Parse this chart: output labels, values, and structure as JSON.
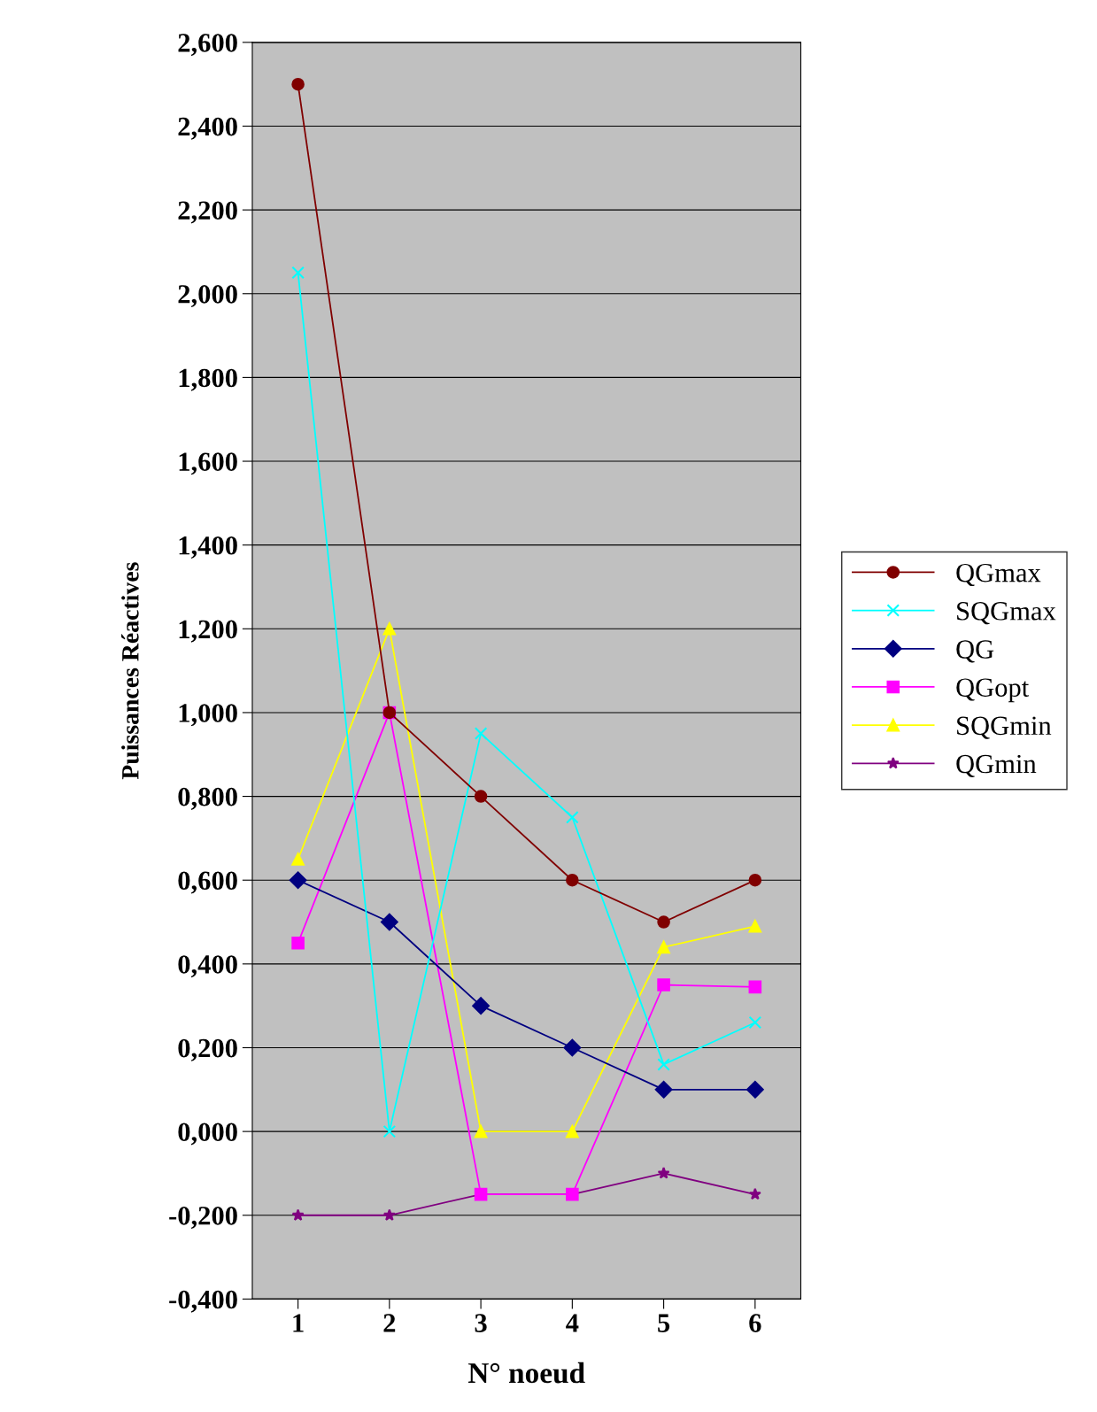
{
  "chart_data": {
    "type": "line",
    "xlabel": "N° noeud",
    "ylabel": "Puissances Réactives",
    "categories": [
      "1",
      "2",
      "3",
      "4",
      "5",
      "6"
    ],
    "series": [
      {
        "name": "QGmax",
        "color": "#800000",
        "marker": "circle",
        "values": [
          2.5,
          1.0,
          0.8,
          0.6,
          0.5,
          0.6
        ]
      },
      {
        "name": "SQGmax",
        "color": "#00ffff",
        "marker": "cross",
        "values": [
          2.05,
          0.0,
          0.95,
          0.75,
          0.16,
          0.26
        ]
      },
      {
        "name": "QG",
        "color": "#000080",
        "marker": "diamond",
        "values": [
          0.6,
          0.5,
          0.3,
          0.2,
          0.1,
          0.1
        ]
      },
      {
        "name": "QGopt",
        "color": "#ff00ff",
        "marker": "square",
        "values": [
          0.45,
          1.0,
          -0.15,
          -0.15,
          0.35,
          0.345
        ]
      },
      {
        "name": "SQGmin",
        "color": "#ffff00",
        "marker": "triangle",
        "values": [
          0.65,
          1.2,
          0.0,
          0.0,
          0.44,
          0.49
        ]
      },
      {
        "name": "QGmin",
        "color": "#800080",
        "marker": "star",
        "values": [
          -0.2,
          -0.2,
          -0.15,
          -0.15,
          -0.1,
          -0.15
        ]
      }
    ],
    "ylim": [
      -0.4,
      2.6
    ],
    "yticks": [
      {
        "value": -0.4,
        "label": "-0,400"
      },
      {
        "value": -0.2,
        "label": "-0,200"
      },
      {
        "value": 0,
        "label": "0,000"
      },
      {
        "value": 0.2,
        "label": "0,200"
      },
      {
        "value": 0.4,
        "label": "0,400"
      },
      {
        "value": 0.6,
        "label": "0,600"
      },
      {
        "value": 0.8,
        "label": "0,800"
      },
      {
        "value": 1.0,
        "label": "1,000"
      },
      {
        "value": 1.2,
        "label": "1,200"
      },
      {
        "value": 1.4,
        "label": "1,400"
      },
      {
        "value": 1.6,
        "label": "1,600"
      },
      {
        "value": 1.8,
        "label": "1,800"
      },
      {
        "value": 2.0,
        "label": "2,000"
      },
      {
        "value": 2.2,
        "label": "2,200"
      },
      {
        "value": 2.4,
        "label": "2,400"
      },
      {
        "value": 2.6,
        "label": "2,600"
      }
    ],
    "grid": "y",
    "legend": "right"
  }
}
